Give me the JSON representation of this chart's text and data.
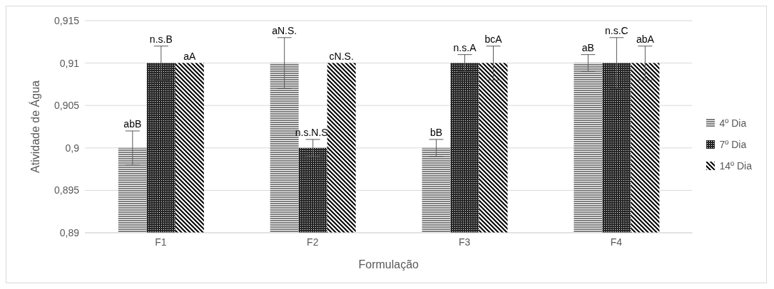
{
  "chart_data": {
    "type": "bar",
    "xlabel": "Formulação",
    "ylabel": "Atividade de Água",
    "categories": [
      "F1",
      "F2",
      "F3",
      "F4"
    ],
    "series": [
      {
        "name": "4º Dia",
        "color": "#000000",
        "values": [
          0.9,
          0.91,
          0.9,
          0.91
        ],
        "errors": [
          0.002,
          0.003,
          0.001,
          0.001
        ],
        "value_labels": [
          "abB",
          "aN.S.",
          "bB",
          "aB"
        ]
      },
      {
        "name": "7º Dia",
        "color": "#000000",
        "values": [
          0.91,
          0.9,
          0.91,
          0.91
        ],
        "errors": [
          0.002,
          0.001,
          0.001,
          0.003
        ],
        "value_labels": [
          "n.s.B",
          "n.s.N.S.",
          "n.s.A",
          "n.s.C"
        ]
      },
      {
        "name": "14º Dia",
        "color": "#000000",
        "values": [
          0.91,
          0.91,
          0.91,
          0.91
        ],
        "errors": [
          null,
          null,
          0.002,
          0.002
        ],
        "value_labels": [
          "aA",
          "cN.S.",
          "bcA",
          "abA"
        ]
      }
    ],
    "ylim": [
      0.89,
      0.915
    ],
    "yticks": [
      {
        "value": 0.89,
        "label": "0,89"
      },
      {
        "value": 0.895,
        "label": "0,895"
      },
      {
        "value": 0.9,
        "label": "0,9"
      },
      {
        "value": 0.905,
        "label": "0,905"
      },
      {
        "value": 0.91,
        "label": "0,91"
      },
      {
        "value": 0.915,
        "label": "0,915"
      }
    ],
    "grid": "y",
    "legend": "right"
  }
}
